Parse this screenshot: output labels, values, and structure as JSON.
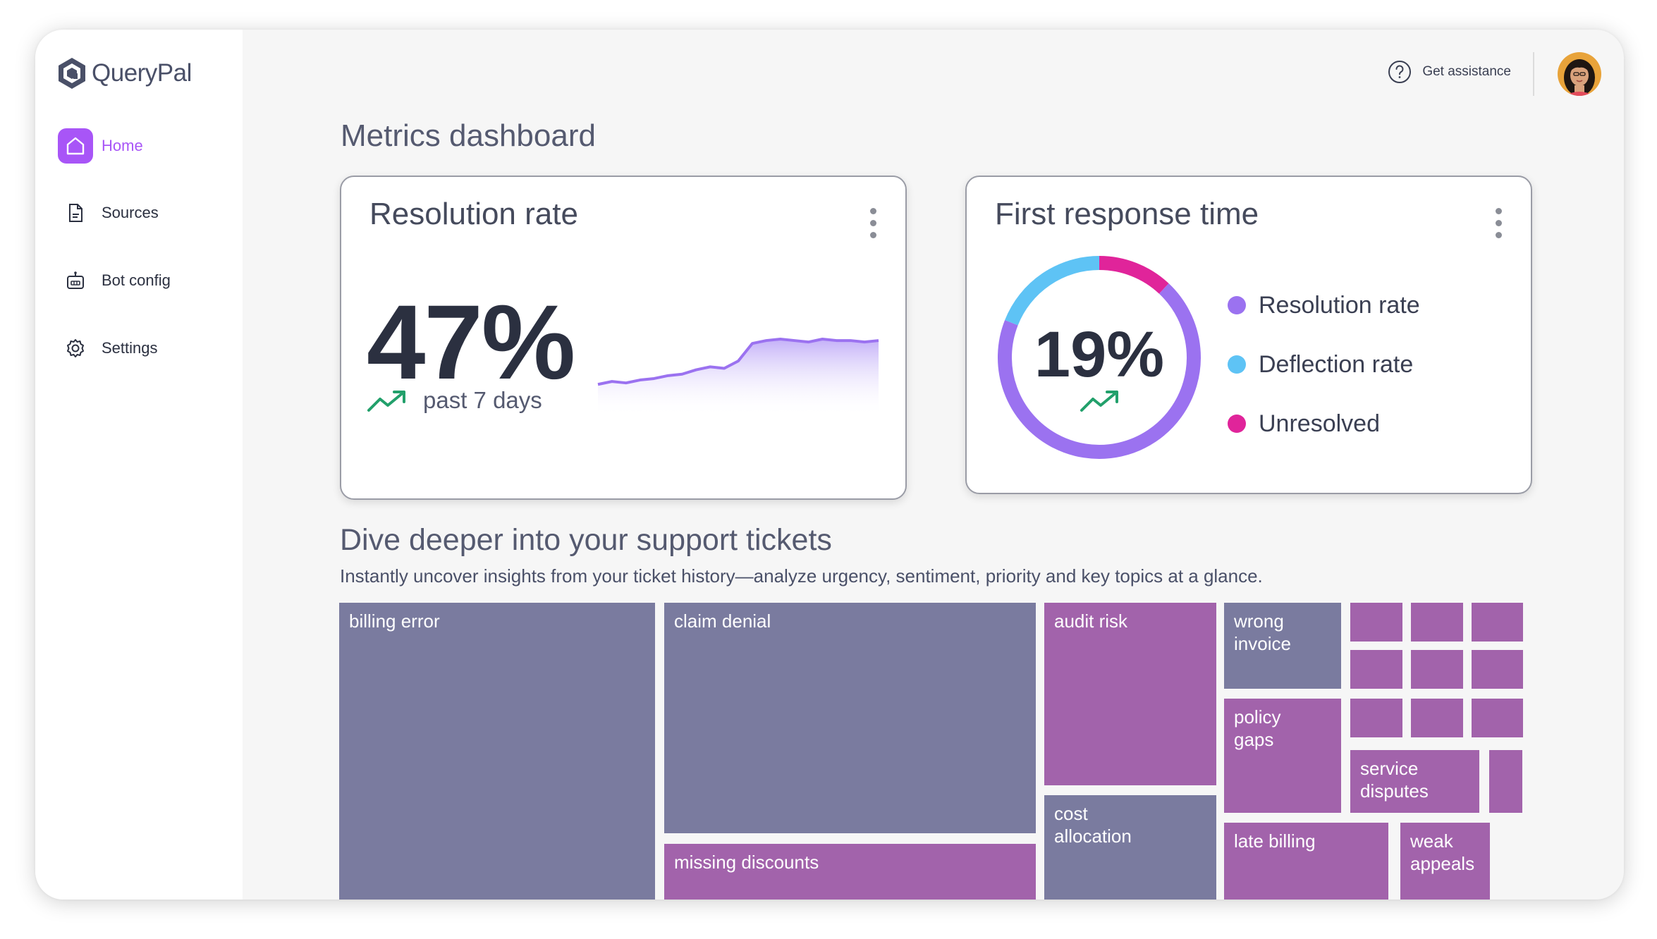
{
  "app": {
    "name": "QueryPal"
  },
  "sidebar": {
    "items": [
      {
        "label": "Home",
        "icon": "home-icon",
        "active": true
      },
      {
        "label": "Sources",
        "icon": "document-icon",
        "active": false
      },
      {
        "label": "Bot config",
        "icon": "bot-icon",
        "active": false
      },
      {
        "label": "Settings",
        "icon": "gear-icon",
        "active": false
      }
    ]
  },
  "header": {
    "assist_label": "Get assistance"
  },
  "page": {
    "title": "Metrics dashboard"
  },
  "resolution_card": {
    "title": "Resolution rate",
    "value": "47%",
    "period": "past 7 days",
    "chart_data": {
      "type": "area",
      "values": [
        10,
        12,
        11,
        13,
        14,
        16,
        17,
        20,
        22,
        21,
        26,
        38,
        40,
        41,
        40,
        39,
        41,
        40,
        40,
        39,
        40
      ],
      "trend": "up"
    }
  },
  "response_card": {
    "title": "First response time",
    "value": "19%",
    "chart_data": {
      "type": "pie",
      "series": [
        {
          "name": "Resolution rate",
          "value": 69,
          "color": "#9b72f0"
        },
        {
          "name": "Deflection rate",
          "value": 19,
          "color": "#5ec3f5"
        },
        {
          "name": "Unresolved",
          "value": 12,
          "color": "#e0249a"
        }
      ]
    }
  },
  "insights": {
    "title": "Dive deeper into your support tickets",
    "subtitle": "Instantly uncover insights from your ticket history—analyze urgency, sentiment, priority and key topics at a glance."
  },
  "treemap": {
    "colors": {
      "slate": "#7a7b9f",
      "purple": "#a263ab"
    },
    "tiles": [
      {
        "label": "billing error",
        "color": "slate"
      },
      {
        "label": "claim denial",
        "color": "slate"
      },
      {
        "label": "missing discounts",
        "color": "purple"
      },
      {
        "label": "audit risk",
        "color": "purple"
      },
      {
        "label": "cost\nallocation",
        "color": "slate"
      },
      {
        "label": "wrong\ninvoice",
        "color": "slate"
      },
      {
        "label": "policy\ngaps",
        "color": "purple"
      },
      {
        "label": "service\ndisputes",
        "color": "purple"
      },
      {
        "label": "late billing",
        "color": "purple"
      },
      {
        "label": "weak\nappeals",
        "color": "purple"
      },
      {
        "label": "",
        "color": "purple"
      },
      {
        "label": "",
        "color": "purple"
      },
      {
        "label": "",
        "color": "purple"
      },
      {
        "label": "",
        "color": "purple"
      },
      {
        "label": "",
        "color": "purple"
      },
      {
        "label": "",
        "color": "purple"
      },
      {
        "label": "",
        "color": "purple"
      },
      {
        "label": "",
        "color": "purple"
      },
      {
        "label": "",
        "color": "purple"
      },
      {
        "label": "",
        "color": "purple"
      }
    ]
  }
}
